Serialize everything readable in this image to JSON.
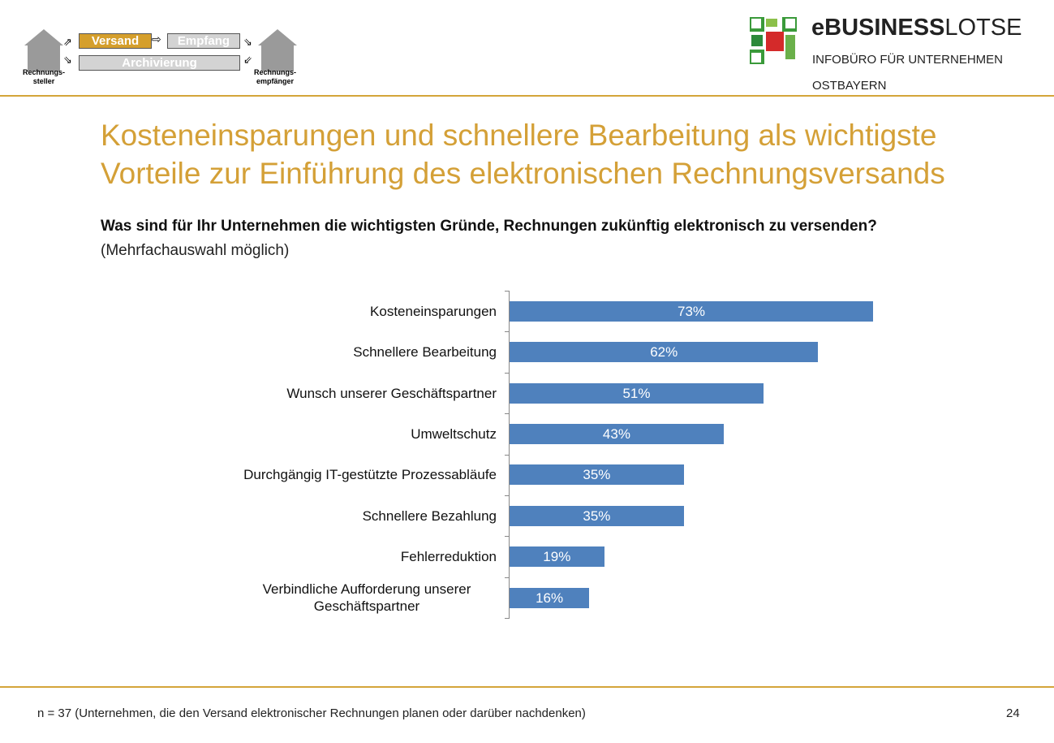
{
  "header": {
    "process": {
      "versand": "Versand",
      "empfang": "Empfang",
      "archivierung": "Archivierung",
      "sender": "Rechnungs-\nsteller",
      "receiver": "Rechnungs-\nempfänger"
    },
    "logo": {
      "brand_bold": "eBUSINESS",
      "brand_light": "LOTSE",
      "line1": "INFOBÜRO FÜR UNTERNEHMEN",
      "line2": "OSTBAYERN"
    }
  },
  "slide": {
    "title": "Kosteneinsparungen und schnellere Bearbeitung als wichtigste Vorteile zur Einführung des elektronischen Rechnungsversands",
    "question": "Was sind für Ihr Unternehmen die wichtigsten Gründe, Rechnungen zukünftig elektronisch zu versenden?",
    "note": "(Mehrfachauswahl möglich)",
    "footer": "n = 37 (Unternehmen, die den Versand elektronischer Rechnungen planen oder darüber nachdenken)",
    "page": "24"
  },
  "colors": {
    "accent": "#d4a037",
    "bar": "#4f81bd"
  },
  "chart_data": {
    "type": "bar",
    "orientation": "horizontal",
    "categories": [
      "Kosteneinsparungen",
      "Schnellere Bearbeitung",
      "Wunsch unserer Geschäftspartner",
      "Umweltschutz",
      "Durchgängig IT-gestützte Prozessabläufe",
      "Schnellere Bezahlung",
      "Fehlerreduktion",
      "Verbindliche Aufforderung unserer Geschäftspartner"
    ],
    "values": [
      73,
      62,
      51,
      43,
      35,
      35,
      19,
      16
    ],
    "labels": [
      "73%",
      "62%",
      "51%",
      "43%",
      "35%",
      "35%",
      "19%",
      "16%"
    ],
    "unit": "%",
    "grid": false
  }
}
